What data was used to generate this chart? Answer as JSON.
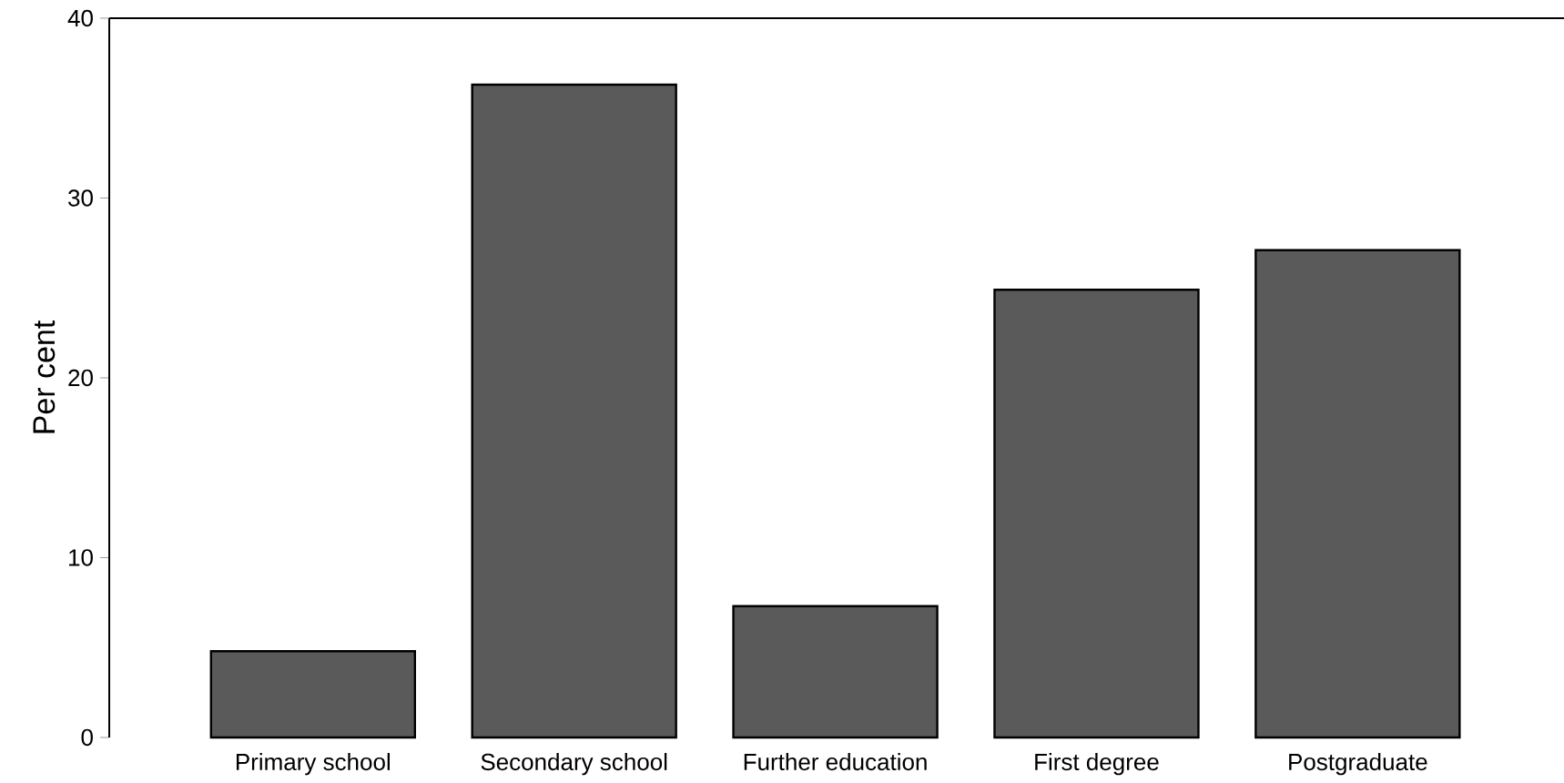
{
  "chart_data": {
    "type": "bar",
    "ylabel": "Per cent",
    "categories": [
      "Primary school",
      "Secondary school",
      "Further education",
      "First degree",
      "Postgraduate"
    ],
    "values": [
      4.8,
      36.3,
      7.3,
      24.9,
      27.1
    ],
    "color": "#5a5a5a",
    "ylim": [
      0,
      40
    ],
    "yticks": [
      0,
      10,
      20,
      30,
      40
    ],
    "grid": false
  }
}
